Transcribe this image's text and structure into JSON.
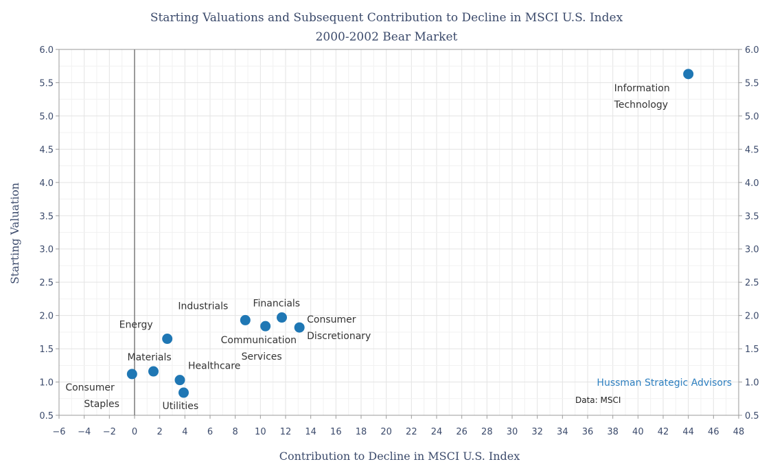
{
  "chart_data": {
    "type": "scatter",
    "title": "Starting Valuations and Subsequent Contribution to Decline in MSCI U.S. Index",
    "subtitle": "2000-2002 Bear Market",
    "xlabel": "Contribution to Decline in MSCI U.S. Index",
    "ylabel": "Starting Valuation",
    "xlim": [
      -6,
      48
    ],
    "ylim": [
      0.5,
      6.0
    ],
    "x_ticks": [
      "-6",
      "-4",
      "-2",
      "0",
      "2",
      "4",
      "6",
      "8",
      "10",
      "12",
      "14",
      "16",
      "18",
      "20",
      "22",
      "24",
      "26",
      "28",
      "30",
      "32",
      "34",
      "36",
      "38",
      "40",
      "42",
      "44",
      "46",
      "48"
    ],
    "y_ticks": [
      "0.5",
      "1.0",
      "1.5",
      "2.0",
      "2.5",
      "3.0",
      "3.5",
      "4.0",
      "4.5",
      "5.0",
      "5.5",
      "6.0"
    ],
    "grid": true,
    "zero_line": true,
    "point_color": "#1f77b4",
    "points": [
      {
        "label": [
          "Information",
          "Technology"
        ],
        "x": 44.0,
        "y": 5.63
      },
      {
        "label": [
          "Financials"
        ],
        "x": 11.7,
        "y": 1.97
      },
      {
        "label": [
          "Industrials"
        ],
        "x": 8.8,
        "y": 1.93
      },
      {
        "label": [
          "Communication",
          "Services"
        ],
        "x": 10.4,
        "y": 1.84
      },
      {
        "label": [
          "Consumer",
          "Discretionary"
        ],
        "x": 13.1,
        "y": 1.82
      },
      {
        "label": [
          "Energy"
        ],
        "x": 2.6,
        "y": 1.65
      },
      {
        "label": [
          "Materials"
        ],
        "x": 1.5,
        "y": 1.16
      },
      {
        "label": [
          "Consumer",
          "Staples"
        ],
        "x": -0.2,
        "y": 1.12
      },
      {
        "label": [
          "Healthcare"
        ],
        "x": 3.6,
        "y": 1.03
      },
      {
        "label": [
          "Utilities"
        ],
        "x": 3.9,
        "y": 0.84
      }
    ]
  },
  "brand": "Hussman Strategic Advisors",
  "source": "Data: MSCI"
}
